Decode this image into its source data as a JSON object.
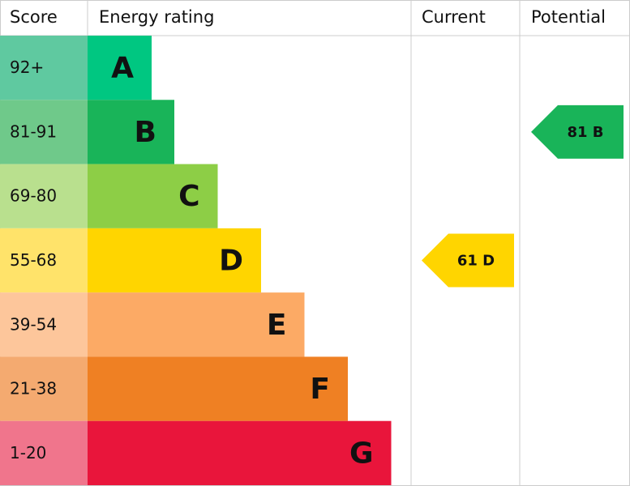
{
  "header": {
    "score": "Score",
    "rating": "Energy rating",
    "current": "Current",
    "potential": "Potential"
  },
  "rows": [
    {
      "score": "92+",
      "letter": "A",
      "color": "#00c781",
      "score_color": "#5fc9a0"
    },
    {
      "score": "81-91",
      "letter": "B",
      "color": "#19b459",
      "score_color": "#6fc98a"
    },
    {
      "score": "69-80",
      "letter": "C",
      "color": "#8dce46",
      "score_color": "#b9e08e"
    },
    {
      "score": "55-68",
      "letter": "D",
      "color": "#ffd500",
      "score_color": "#ffe36a"
    },
    {
      "score": "39-54",
      "letter": "E",
      "color": "#fcaa65",
      "score_color": "#fdc69b"
    },
    {
      "score": "21-38",
      "letter": "F",
      "color": "#ef8023",
      "score_color": "#f4aa70"
    },
    {
      "score": "1-20",
      "letter": "G",
      "color": "#e9153b",
      "score_color": "#f0758c"
    }
  ],
  "current": {
    "value": 61,
    "label": "61 D"
  },
  "potential": {
    "value": 81,
    "label": "81 B"
  }
}
